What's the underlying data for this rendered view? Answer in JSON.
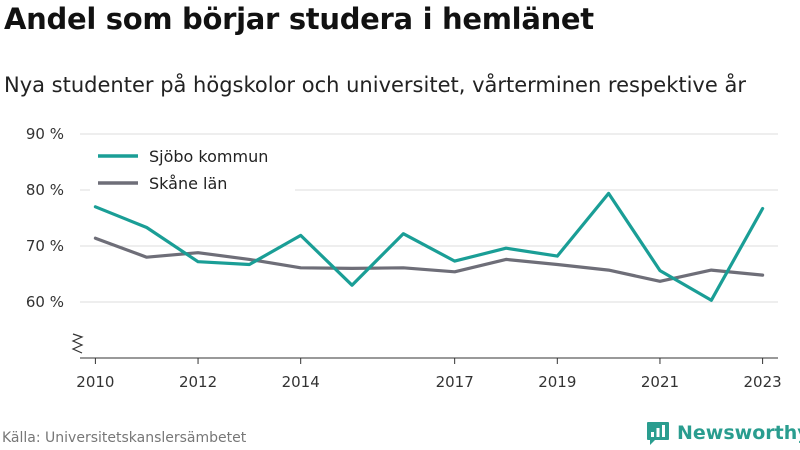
{
  "header": {
    "title": "Andel som börjar studera i hemlänet",
    "subtitle": "Nya studenter på högskolor och universitet, vårterminen respektive år"
  },
  "footer": {
    "source": "Källa: Universitetskanslersämbetet",
    "brand": "Newsworthy",
    "brand_icon": "newsworthy-logo-icon",
    "brand_color": "#2a9d8f"
  },
  "chart_data": {
    "type": "line",
    "x": [
      2010,
      2011,
      2012,
      2013,
      2014,
      2015,
      2016,
      2017,
      2018,
      2019,
      2020,
      2021,
      2022,
      2023
    ],
    "x_tick_labels": [
      "2010",
      "2012",
      "2014",
      "2017",
      "2019",
      "2021",
      "2023"
    ],
    "y_tick_labels": [
      "60 %",
      "70 %",
      "80 %",
      "90 %"
    ],
    "y_ticks": [
      60,
      70,
      80,
      90
    ],
    "ylim": [
      50,
      90
    ],
    "y_axis_break": true,
    "grid": true,
    "legend_position": "top-left",
    "series": [
      {
        "name": "Sjöbo kommun",
        "color": "#1a9e96",
        "values": [
          77,
          73.3,
          67.2,
          66.7,
          71.9,
          63,
          72.2,
          67.3,
          69.6,
          68.2,
          79.4,
          65.6,
          60.3,
          76.7
        ]
      },
      {
        "name": "Skåne län",
        "color": "#6e6e78",
        "values": [
          71.4,
          68,
          68.8,
          67.6,
          66.1,
          66,
          66.1,
          65.4,
          67.6,
          66.7,
          65.7,
          63.7,
          65.7,
          64.8
        ]
      }
    ]
  }
}
